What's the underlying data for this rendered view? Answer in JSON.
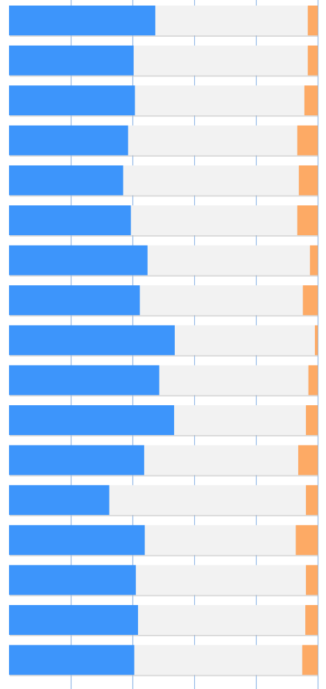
{
  "chart_data": {
    "type": "bar",
    "orientation": "horizontal",
    "stacked": true,
    "normalized": true,
    "grid": true,
    "legend": "none",
    "title": "",
    "xlabel": "",
    "ylabel": "",
    "xlim": [
      0,
      1
    ],
    "xticks": [
      0.2,
      0.4,
      0.6,
      0.8,
      1.0
    ],
    "tick_labels_visible": false,
    "categories": [
      "",
      "",
      "",
      "",
      "",
      "",
      "",
      "",
      "",
      "",
      "",
      "",
      "",
      "",
      "",
      "",
      ""
    ],
    "series": [
      {
        "color": "#3d95fb",
        "values": [
          0.474,
          0.404,
          0.408,
          0.386,
          0.37,
          0.395,
          0.449,
          0.424,
          0.537,
          0.487,
          0.535,
          0.438,
          0.325,
          0.44,
          0.411,
          0.418,
          0.406
        ]
      },
      {
        "color": "#f2f2f2",
        "values": [
          0.494,
          0.564,
          0.549,
          0.548,
          0.569,
          0.539,
          0.526,
          0.528,
          0.454,
          0.483,
          0.427,
          0.499,
          0.637,
          0.489,
          0.551,
          0.542,
          0.544
        ]
      },
      {
        "color": "#fdaa65",
        "values": [
          0.032,
          0.032,
          0.043,
          0.066,
          0.061,
          0.066,
          0.025,
          0.048,
          0.009,
          0.03,
          0.038,
          0.063,
          0.038,
          0.071,
          0.038,
          0.04,
          0.05
        ]
      }
    ]
  }
}
